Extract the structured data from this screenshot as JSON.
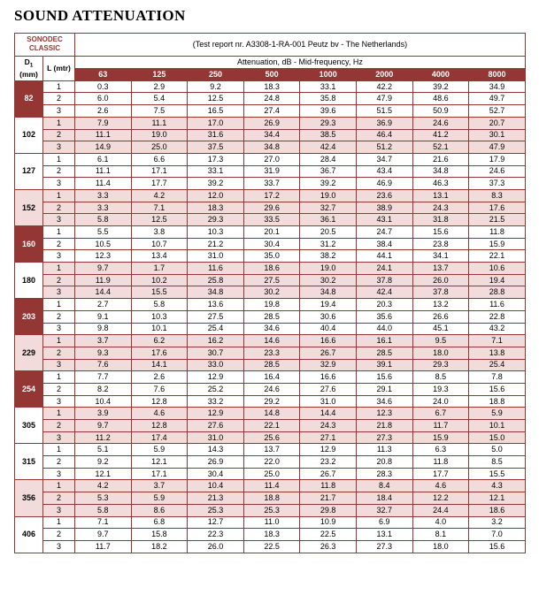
{
  "page_title": "SOUND ATTENUATION",
  "colors": {
    "dark_red": "#943634",
    "light_pink": "#F2DBDB",
    "border": "#943634",
    "text": "#000000"
  },
  "table": {
    "brand_line1": "SONODEC",
    "brand_line2": "CLASSIC",
    "test_report": "(Test report nr. A3308-1-RA-001 Peutz bv - The Netherlands)",
    "col_d1": {
      "label": "D",
      "sub": "1",
      "unit": "(mm)"
    },
    "col_l_label": "L (mtr)",
    "attenuation_label": "Attenuation, dB - Mid-frequency, Hz",
    "frequencies": [
      "63",
      "125",
      "250",
      "500",
      "1000",
      "2000",
      "4000",
      "8000"
    ],
    "groups": [
      {
        "d1": "82",
        "d1_style": "dark",
        "band": "white",
        "rows": [
          {
            "l": "1",
            "values": [
              "0.3",
              "2.9",
              "9.2",
              "18.3",
              "33.1",
              "42.2",
              "39.2",
              "34.9"
            ]
          },
          {
            "l": "2",
            "values": [
              "6.0",
              "5.4",
              "12.5",
              "24.8",
              "35.8",
              "47.9",
              "48.6",
              "49.7"
            ]
          },
          {
            "l": "3",
            "values": [
              "2.6",
              "7.5",
              "16.5",
              "27.4",
              "39.6",
              "51.5",
              "50.9",
              "52.7"
            ]
          }
        ]
      },
      {
        "d1": "102",
        "d1_style": "white",
        "band": "pink",
        "rows": [
          {
            "l": "1",
            "values": [
              "7.9",
              "11.1",
              "17.0",
              "26.9",
              "29.3",
              "36.9",
              "24.6",
              "20.7"
            ]
          },
          {
            "l": "2",
            "values": [
              "11.1",
              "19.0",
              "31.6",
              "34.4",
              "38.5",
              "46.4",
              "41.2",
              "30.1"
            ]
          },
          {
            "l": "3",
            "values": [
              "14.9",
              "25.0",
              "37.5",
              "34.8",
              "42.4",
              "51.2",
              "52.1",
              "47.9"
            ]
          }
        ]
      },
      {
        "d1": "127",
        "d1_style": "white",
        "band": "white",
        "rows": [
          {
            "l": "1",
            "values": [
              "6.1",
              "6.6",
              "17.3",
              "27.0",
              "28.4",
              "34.7",
              "21.6",
              "17.9"
            ]
          },
          {
            "l": "2",
            "values": [
              "11.1",
              "17.1",
              "33.1",
              "31.9",
              "36.7",
              "43.4",
              "34.8",
              "24.6"
            ]
          },
          {
            "l": "3",
            "values": [
              "11.4",
              "17.7",
              "39.2",
              "33.7",
              "39.2",
              "46.9",
              "46.3",
              "37.3"
            ]
          }
        ]
      },
      {
        "d1": "152",
        "d1_style": "pink",
        "band": "pink",
        "rows": [
          {
            "l": "1",
            "values": [
              "3.3",
              "4.2",
              "12.0",
              "17.2",
              "19.0",
              "23.6",
              "13.1",
              "8.3"
            ]
          },
          {
            "l": "2",
            "values": [
              "3.3",
              "7.1",
              "18.3",
              "29.6",
              "32.7",
              "38.9",
              "24.3",
              "17.6"
            ]
          },
          {
            "l": "3",
            "values": [
              "5.8",
              "12.5",
              "29.3",
              "33.5",
              "36.1",
              "43.1",
              "31.8",
              "21.5"
            ]
          }
        ]
      },
      {
        "d1": "160",
        "d1_style": "dark",
        "band": "white",
        "rows": [
          {
            "l": "1",
            "values": [
              "5.5",
              "3.8",
              "10.3",
              "20.1",
              "20.5",
              "24.7",
              "15.6",
              "11.8"
            ]
          },
          {
            "l": "2",
            "values": [
              "10.5",
              "10.7",
              "21.2",
              "30.4",
              "31.2",
              "38.4",
              "23.8",
              "15.9"
            ]
          },
          {
            "l": "3",
            "values": [
              "12.3",
              "13.4",
              "31.0",
              "35.0",
              "38.2",
              "44.1",
              "34.1",
              "22.1"
            ]
          }
        ]
      },
      {
        "d1": "180",
        "d1_style": "white",
        "band": "pink",
        "rows": [
          {
            "l": "1",
            "values": [
              "9.7",
              "1.7",
              "11.6",
              "18.6",
              "19.0",
              "24.1",
              "13.7",
              "10.6"
            ]
          },
          {
            "l": "2",
            "values": [
              "11.9",
              "10.2",
              "25.8",
              "27.5",
              "30.2",
              "37.8",
              "26.0",
              "19.4"
            ]
          },
          {
            "l": "3",
            "values": [
              "14.4",
              "15.5",
              "34.8",
              "30.2",
              "34.8",
              "42.4",
              "37.8",
              "28.8"
            ]
          }
        ]
      },
      {
        "d1": "203",
        "d1_style": "dark",
        "band": "white",
        "rows": [
          {
            "l": "1",
            "values": [
              "2.7",
              "5.8",
              "13.6",
              "19.8",
              "19.4",
              "20.3",
              "13.2",
              "11.6"
            ]
          },
          {
            "l": "2",
            "values": [
              "9.1",
              "10.3",
              "27.5",
              "28.5",
              "30.6",
              "35.6",
              "26.6",
              "22.8"
            ]
          },
          {
            "l": "3",
            "values": [
              "9.8",
              "10.1",
              "25.4",
              "34.6",
              "40.4",
              "44.0",
              "45.1",
              "43.2"
            ]
          }
        ]
      },
      {
        "d1": "229",
        "d1_style": "pink",
        "band": "pink",
        "rows": [
          {
            "l": "1",
            "values": [
              "3.7",
              "6.2",
              "16.2",
              "14.6",
              "16.6",
              "16.1",
              "9.5",
              "7.1"
            ]
          },
          {
            "l": "2",
            "values": [
              "9.3",
              "17.6",
              "30.7",
              "23.3",
              "26.7",
              "28.5",
              "18.0",
              "13.8"
            ]
          },
          {
            "l": "3",
            "values": [
              "7.6",
              "14.1",
              "33.0",
              "28.5",
              "32.9",
              "39.1",
              "29.3",
              "25.4"
            ]
          }
        ]
      },
      {
        "d1": "254",
        "d1_style": "dark",
        "band": "white",
        "rows": [
          {
            "l": "1",
            "values": [
              "7.7",
              "2.6",
              "12.9",
              "16.4",
              "16.6",
              "15.6",
              "8.5",
              "7.8"
            ]
          },
          {
            "l": "2",
            "values": [
              "8.2",
              "7.6",
              "25.2",
              "24.6",
              "27.6",
              "29.1",
              "19.3",
              "15.6"
            ]
          },
          {
            "l": "3",
            "values": [
              "10.4",
              "12.8",
              "33.2",
              "29.2",
              "31.0",
              "34.6",
              "24.0",
              "18.8"
            ]
          }
        ]
      },
      {
        "d1": "305",
        "d1_style": "white",
        "band": "pink",
        "rows": [
          {
            "l": "1",
            "values": [
              "3.9",
              "4.6",
              "12.9",
              "14.8",
              "14.4",
              "12.3",
              "6.7",
              "5.9"
            ]
          },
          {
            "l": "2",
            "values": [
              "9.7",
              "12.8",
              "27.6",
              "22.1",
              "24.3",
              "21.8",
              "11.7",
              "10.1"
            ]
          },
          {
            "l": "3",
            "values": [
              "11.2",
              "17.4",
              "31.0",
              "25.6",
              "27.1",
              "27.3",
              "15.9",
              "15.0"
            ]
          }
        ]
      },
      {
        "d1": "315",
        "d1_style": "white",
        "band": "white",
        "rows": [
          {
            "l": "1",
            "values": [
              "5.1",
              "5.9",
              "14.3",
              "13.7",
              "12.9",
              "11.3",
              "6.3",
              "5.0"
            ]
          },
          {
            "l": "2",
            "values": [
              "9.2",
              "12.1",
              "26.9",
              "22.0",
              "23.2",
              "20.8",
              "11.8",
              "8.5"
            ]
          },
          {
            "l": "3",
            "values": [
              "12.1",
              "17.1",
              "30.4",
              "25.0",
              "26.7",
              "28.3",
              "17.7",
              "15.5"
            ]
          }
        ]
      },
      {
        "d1": "356",
        "d1_style": "pink",
        "band": "pink",
        "rows": [
          {
            "l": "1",
            "values": [
              "4.2",
              "3.7",
              "10.4",
              "11.4",
              "11.8",
              "8.4",
              "4.6",
              "4.3"
            ]
          },
          {
            "l": "2",
            "values": [
              "5.3",
              "5.9",
              "21.3",
              "18.8",
              "21.7",
              "18.4",
              "12.2",
              "12.1"
            ]
          },
          {
            "l": "3",
            "values": [
              "5.8",
              "8.6",
              "25.3",
              "25.3",
              "29.8",
              "32.7",
              "24.4",
              "18.6"
            ]
          }
        ]
      },
      {
        "d1": "406",
        "d1_style": "white",
        "band": "white",
        "rows": [
          {
            "l": "1",
            "values": [
              "7.1",
              "6.8",
              "12.7",
              "11.0",
              "10.9",
              "6.9",
              "4.0",
              "3.2"
            ]
          },
          {
            "l": "2",
            "values": [
              "9.7",
              "15.8",
              "22.3",
              "18.3",
              "22.5",
              "13.1",
              "8.1",
              "7.0"
            ]
          },
          {
            "l": "3",
            "values": [
              "11.7",
              "18.2",
              "26.0",
              "22.5",
              "26.3",
              "27.3",
              "18.0",
              "15.6"
            ]
          }
        ]
      }
    ]
  }
}
